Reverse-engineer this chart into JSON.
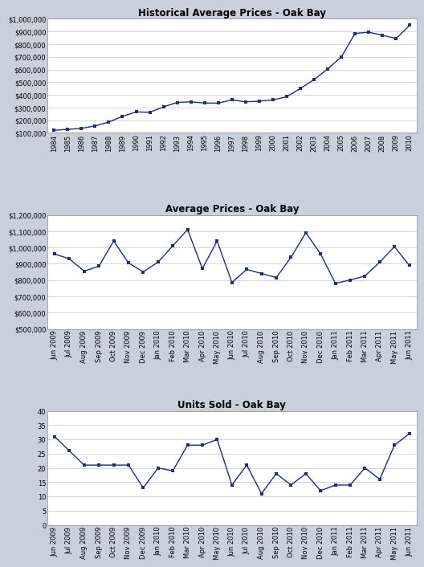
{
  "chart1": {
    "title": "Historical Average Prices - Oak Bay",
    "years": [
      1984,
      1985,
      1986,
      1987,
      1988,
      1989,
      1990,
      1991,
      1992,
      1993,
      1994,
      1995,
      1996,
      1997,
      1998,
      1999,
      2000,
      2001,
      2002,
      2003,
      2004,
      2005,
      2006,
      2007,
      2008,
      2009,
      2010
    ],
    "values": [
      120000,
      128000,
      135000,
      155000,
      185000,
      230000,
      265000,
      262000,
      305000,
      340000,
      345000,
      335000,
      335000,
      360000,
      345000,
      350000,
      360000,
      385000,
      450000,
      520000,
      605000,
      700000,
      885000,
      895000,
      870000,
      845000,
      950000
    ],
    "ylim": [
      100000,
      1000000
    ],
    "yticks": [
      100000,
      200000,
      300000,
      400000,
      500000,
      600000,
      700000,
      800000,
      900000,
      1000000
    ]
  },
  "chart2": {
    "title": "Average Prices - Oak Bay",
    "labels": [
      "Jun 2009",
      "Jul 2009",
      "Aug 2009",
      "Sep 2009",
      "Oct 2009",
      "Nov 2009",
      "Dec 2009",
      "Jan 2010",
      "Feb 2010",
      "Mar 2010",
      "Apr 2010",
      "May 2010",
      "Jun 2010",
      "Jul 2010",
      "Aug 2010",
      "Sep 2010",
      "Oct 2010",
      "Nov 2010",
      "Dec 2010",
      "Jan 2011",
      "Feb 2011",
      "Mar 2011",
      "Apr 2011",
      "May 2011",
      "Jun 2011"
    ],
    "values": [
      960000,
      930000,
      855000,
      885000,
      1040000,
      905000,
      850000,
      910000,
      1010000,
      1110000,
      870000,
      1040000,
      785000,
      865000,
      840000,
      815000,
      940000,
      1090000,
      960000,
      780000,
      800000,
      825000,
      910000,
      1005000,
      890000
    ],
    "ylim": [
      500000,
      1200000
    ],
    "yticks": [
      500000,
      600000,
      700000,
      800000,
      900000,
      1000000,
      1100000,
      1200000
    ]
  },
  "chart3": {
    "title": "Units Sold - Oak Bay",
    "labels": [
      "Jun 2009",
      "Jul 2009",
      "Aug 2009",
      "Sep 2009",
      "Oct 2009",
      "Nov 2009",
      "Dec 2009",
      "Jan 2010",
      "Feb 2010",
      "Mar 2010",
      "Apr 2010",
      "May 2010",
      "Jun 2010",
      "Jul 2010",
      "Aug 2010",
      "Sep 2010",
      "Oct 2010",
      "Nov 2010",
      "Dec 2010",
      "Jan 2011",
      "Feb 2011",
      "Mar 2011",
      "Apr 2011",
      "May 2011",
      "Jun 2011"
    ],
    "values": [
      31,
      26,
      21,
      21,
      21,
      21,
      13,
      20,
      19,
      28,
      28,
      30,
      14,
      21,
      11,
      18,
      14,
      18,
      12,
      14,
      14,
      20,
      16,
      28,
      32
    ],
    "ylim": [
      0,
      40
    ],
    "yticks": [
      0,
      5,
      10,
      15,
      20,
      25,
      30,
      35,
      40
    ]
  },
  "line_color": "#1F2D7B",
  "marker": "s",
  "marker_size": 3.5,
  "bg_color": "#FFFFFF",
  "grid_color": "#C8C8C8",
  "title_fontsize": 8.5,
  "tick_fontsize": 6,
  "fig_bg": "#C8D0DC"
}
